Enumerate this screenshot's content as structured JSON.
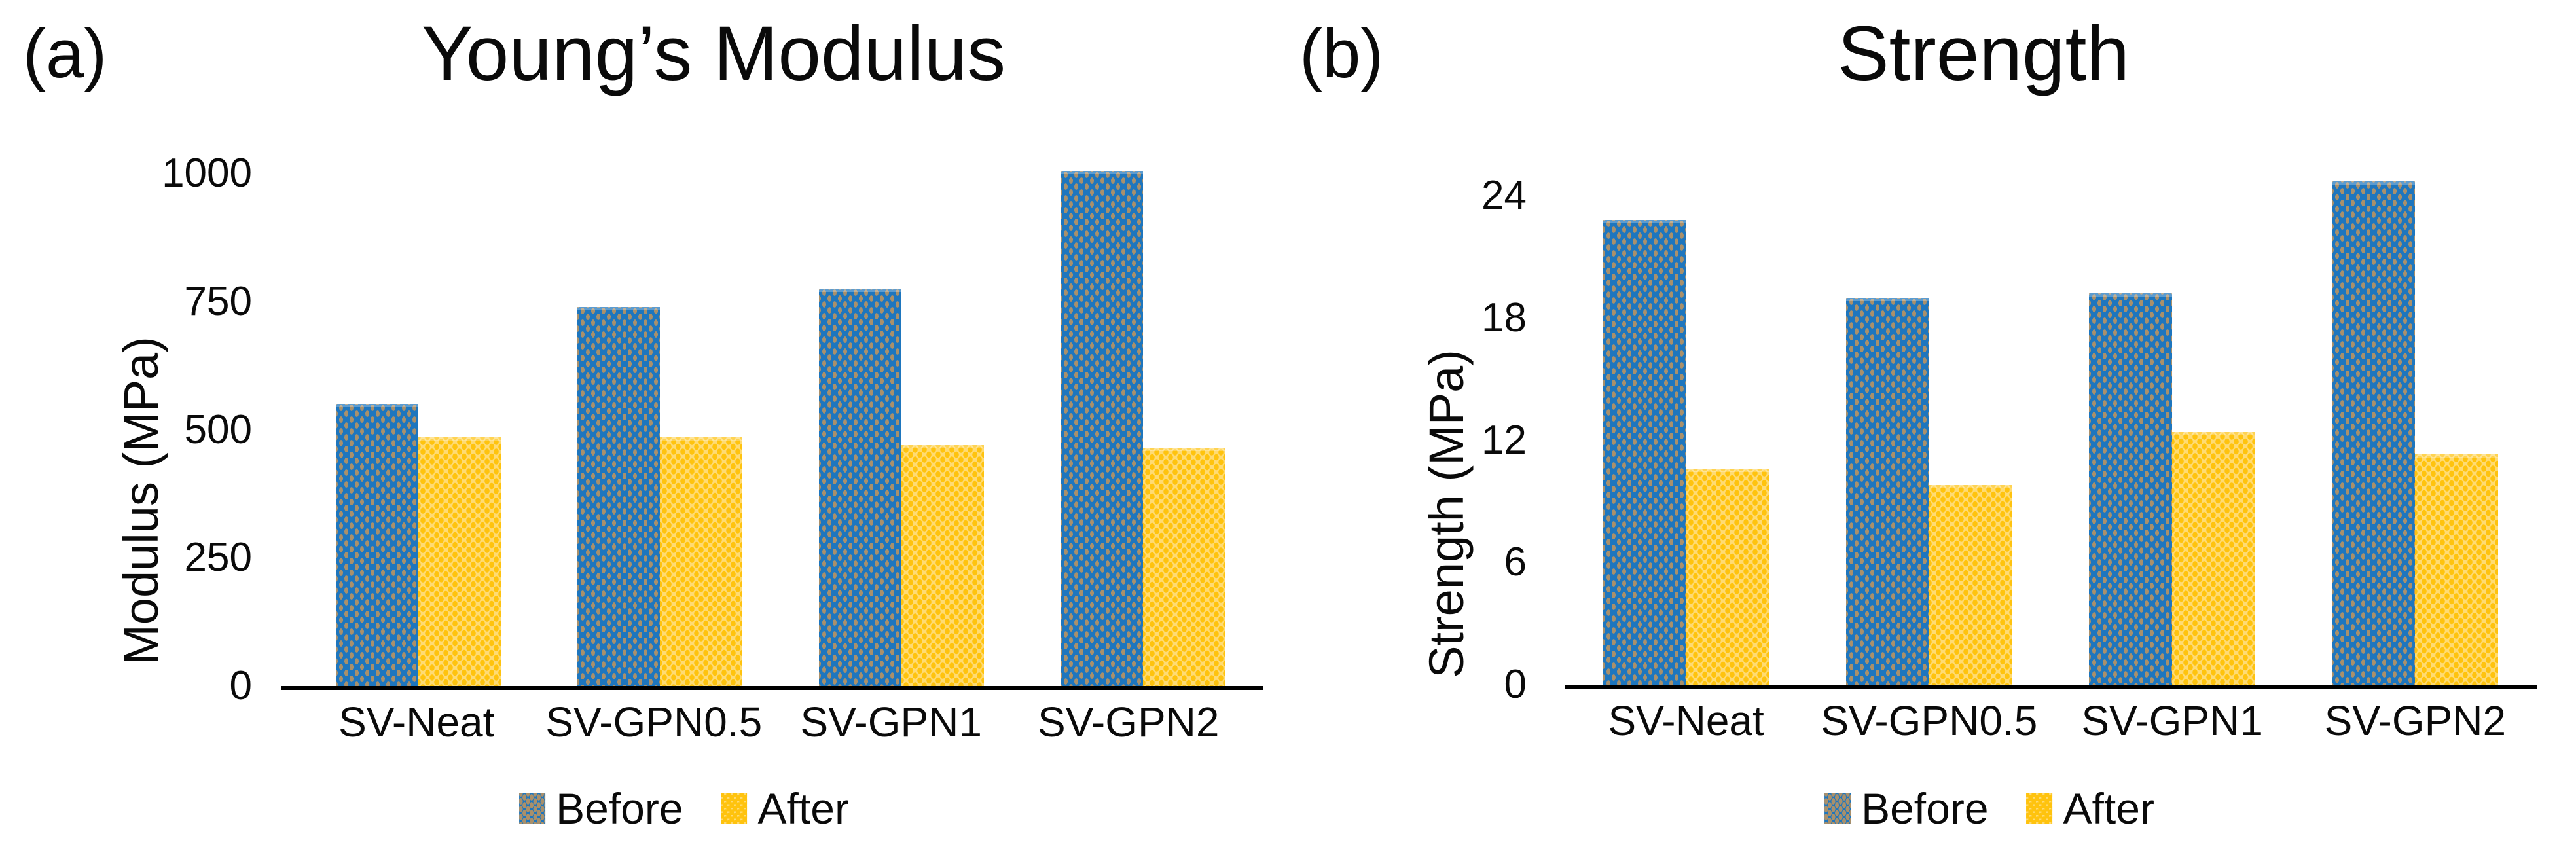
{
  "legend": {
    "before_label": "Before",
    "after_label": "After"
  },
  "colors": {
    "before_fill": "#1E76BE",
    "before_dot": "#A9906B",
    "after_fill": "#FFDB73",
    "after_dot": "#FFC30E",
    "axis": "#000000",
    "text": "#0a0a0a"
  },
  "chart_data": [
    {
      "type": "bar",
      "panel_label": "(a)",
      "title": "Young’s Modulus",
      "ylabel": "Modulus (MPa)",
      "categories": [
        "SV-Neat",
        "SV-GPN0.5",
        "SV-GPN1",
        "SV-GPN2"
      ],
      "series": [
        {
          "name": "Before",
          "values": [
            550,
            740,
            775,
            1005
          ]
        },
        {
          "name": "After",
          "values": [
            485,
            485,
            470,
            465
          ]
        }
      ],
      "ylim": [
        0,
        1000
      ],
      "yticks": [
        0,
        250,
        500,
        750,
        1000
      ],
      "grid": false,
      "legend_position": "bottom"
    },
    {
      "type": "bar",
      "panel_label": "(b)",
      "title": "Strength",
      "ylabel": "Strength (MPa)",
      "categories": [
        "SV-Neat",
        "SV-GPN0.5",
        "SV-GPN1",
        "SV-GPN2"
      ],
      "series": [
        {
          "name": "Before",
          "values": [
            22.8,
            19.0,
            19.2,
            24.7
          ]
        },
        {
          "name": "After",
          "values": [
            10.6,
            9.8,
            12.4,
            11.3
          ]
        }
      ],
      "ylim": [
        0,
        24
      ],
      "yticks": [
        0,
        6,
        12,
        18,
        24
      ],
      "grid": false,
      "legend_position": "bottom"
    }
  ]
}
